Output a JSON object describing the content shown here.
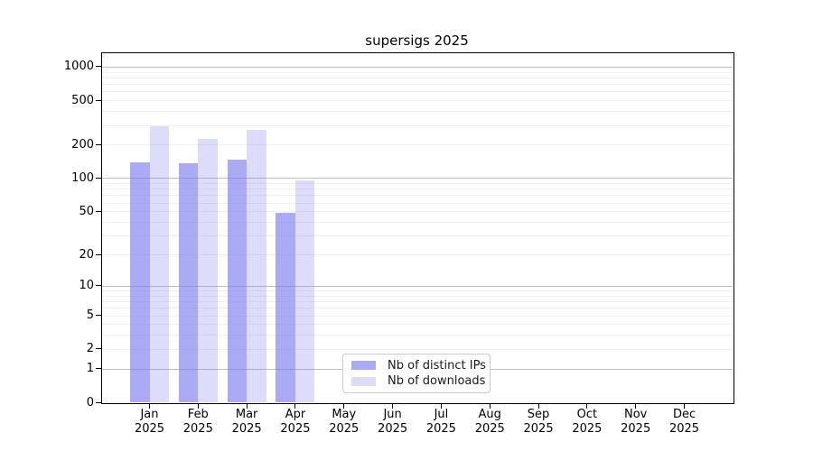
{
  "chart_data": {
    "type": "bar",
    "title": "supersigs 2025",
    "categories": [
      "Jan 2025",
      "Feb 2025",
      "Mar 2025",
      "Apr 2025",
      "May 2025",
      "Jun 2025",
      "Jul 2025",
      "Aug 2025",
      "Sep 2025",
      "Oct 2025",
      "Nov 2025",
      "Dec 2025"
    ],
    "series": [
      {
        "name": "Nb of distinct IPs",
        "color": "#aaaaf5",
        "values": [
          140,
          136,
          148,
          48,
          0,
          0,
          0,
          0,
          0,
          0,
          0,
          0
        ]
      },
      {
        "name": "Nb of downloads",
        "color": "#dcdcf9",
        "values": [
          290,
          225,
          270,
          95,
          0,
          0,
          0,
          0,
          0,
          0,
          0,
          0
        ]
      }
    ],
    "xlabel": "",
    "ylabel": "",
    "yscale": "log1p",
    "y_ticks": [
      0,
      1,
      2,
      5,
      10,
      20,
      50,
      100,
      200,
      500,
      1000
    ],
    "ylim": [
      0,
      1320
    ],
    "grid": "on",
    "grid_minor_color": "#efefef",
    "grid_major_color": "#bdbdbd",
    "legend_position": "inside-lower-center"
  }
}
